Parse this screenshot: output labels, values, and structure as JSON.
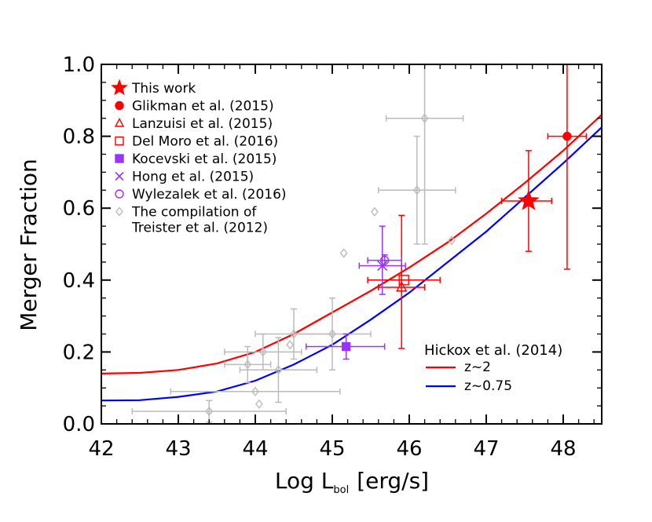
{
  "chart_data": {
    "type": "scatter",
    "xlabel": "Log L",
    "xlabel_sub": "bol",
    "xlabel_unit": "[erg/s]",
    "ylabel": "Merger Fraction",
    "xlim": [
      42,
      48.5
    ],
    "ylim": [
      0.0,
      1.0
    ],
    "x_ticks": [
      42,
      43,
      44,
      45,
      46,
      47,
      48
    ],
    "y_ticks": [
      "0.0",
      "0.2",
      "0.4",
      "0.6",
      "0.8",
      "1.0"
    ],
    "y_tick_values": [
      0.0,
      0.2,
      0.4,
      0.6,
      0.8,
      1.0
    ],
    "grid": false,
    "legend_position": "top-left",
    "datasets": [
      {
        "name": "This work",
        "marker": "star",
        "color": "#ff0000",
        "filled": true,
        "size": 13,
        "points": [
          {
            "x": 47.55,
            "y": 0.62,
            "xerr": [
              0.35,
              0.3
            ],
            "yerr": [
              0.14,
              0.14
            ]
          }
        ]
      },
      {
        "name": "Glikman et al. (2015)",
        "marker": "circle",
        "color": "#ff0000",
        "filled": true,
        "size": 5,
        "points": [
          {
            "x": 48.05,
            "y": 0.8,
            "xerr": [
              0.25,
              0.25
            ],
            "yerr": [
              0.37,
              0.2
            ]
          }
        ]
      },
      {
        "name": "Lanzuisi et al. (2015)",
        "marker": "triangle",
        "color": "#ff0000",
        "filled": false,
        "size": 6,
        "points": [
          {
            "x": 45.9,
            "y": 0.38,
            "xerr": [
              0.3,
              0.3
            ],
            "yerr": [
              0.17,
              0.2
            ]
          }
        ]
      },
      {
        "name": "Del Moro et al. (2016)",
        "marker": "square",
        "color": "#ff0000",
        "filled": false,
        "size": 6,
        "points": [
          {
            "x": 45.93,
            "y": 0.4,
            "xerr": [
              0.47,
              0.47
            ],
            "yerr": [
              0.0,
              0.0
            ]
          }
        ]
      },
      {
        "name": "Kocevski et al. (2015)",
        "marker": "square",
        "color": "#9933ff",
        "filled": true,
        "size": 5,
        "points": [
          {
            "x": 45.18,
            "y": 0.215,
            "xerr": [
              0.52,
              0.5
            ],
            "yerr": [
              0.035,
              0.035
            ]
          }
        ]
      },
      {
        "name": "Hong et al. (2015)",
        "marker": "x",
        "color": "#9933ff",
        "filled": false,
        "size": 6,
        "points": [
          {
            "x": 45.65,
            "y": 0.44,
            "xerr": [
              0.3,
              0.3
            ],
            "yerr": [
              0.08,
              0.11
            ]
          }
        ]
      },
      {
        "name": "Wylezalek et al. (2016)",
        "marker": "circle",
        "color": "#9933ff",
        "filled": false,
        "size": 5,
        "points": [
          {
            "x": 45.68,
            "y": 0.455,
            "xerr": [
              0.22,
              0.22
            ],
            "yerr": [
              0.015,
              0.015
            ]
          }
        ]
      },
      {
        "name": "The compilation of",
        "name_line2": "Treister et al. (2012)",
        "marker": "diamond",
        "color": "#bbbbbb",
        "filled": false,
        "size": 5,
        "points": [
          {
            "x": 43.4,
            "y": 0.035,
            "xerr": [
              1.0,
              1.0
            ],
            "yerr": [
              0.03,
              0.03
            ]
          },
          {
            "x": 44.0,
            "y": 0.09,
            "xerr": [
              1.1,
              1.1
            ],
            "yerr": [
              0.0,
              0.0
            ]
          },
          {
            "x": 44.05,
            "y": 0.055,
            "xerr": [
              0.0,
              0.0
            ],
            "yerr": [
              0.0,
              0.0
            ]
          },
          {
            "x": 43.9,
            "y": 0.165,
            "xerr": [
              0.3,
              0.3
            ],
            "yerr": [
              0.05,
              0.05
            ]
          },
          {
            "x": 44.1,
            "y": 0.2,
            "xerr": [
              0.5,
              0.5
            ],
            "yerr": [
              0.05,
              0.05
            ]
          },
          {
            "x": 44.3,
            "y": 0.15,
            "xerr": [
              0.5,
              0.5
            ],
            "yerr": [
              0.09,
              0.09
            ]
          },
          {
            "x": 44.45,
            "y": 0.22,
            "xerr": [
              0.0,
              0.0
            ],
            "yerr": [
              0.0,
              0.0
            ]
          },
          {
            "x": 44.5,
            "y": 0.25,
            "xerr": [
              0.5,
              0.5
            ],
            "yerr": [
              0.07,
              0.07
            ]
          },
          {
            "x": 45.0,
            "y": 0.25,
            "xerr": [
              0.5,
              0.5
            ],
            "yerr": [
              0.1,
              0.1
            ]
          },
          {
            "x": 45.15,
            "y": 0.475,
            "xerr": [
              0.0,
              0.0
            ],
            "yerr": [
              0.0,
              0.0
            ]
          },
          {
            "x": 45.55,
            "y": 0.59,
            "xerr": [
              0.0,
              0.0
            ],
            "yerr": [
              0.0,
              0.0
            ]
          },
          {
            "x": 46.1,
            "y": 0.65,
            "xerr": [
              0.5,
              0.5
            ],
            "yerr": [
              0.15,
              0.15
            ]
          },
          {
            "x": 46.2,
            "y": 0.85,
            "xerr": [
              0.5,
              0.5
            ],
            "yerr": [
              0.35,
              0.15
            ]
          },
          {
            "x": 46.55,
            "y": 0.51,
            "xerr": [
              0.0,
              0.0
            ],
            "yerr": [
              0.0,
              0.0
            ]
          }
        ]
      }
    ],
    "curves_legend_title": "Hickox et al. (2014)",
    "curves": [
      {
        "name": "z~2",
        "color": "#ff0000",
        "x": [
          42.0,
          42.5,
          43.0,
          43.5,
          44.0,
          44.5,
          45.0,
          45.5,
          46.0,
          46.5,
          47.0,
          47.5,
          48.0,
          48.5
        ],
        "y": [
          0.14,
          0.142,
          0.15,
          0.168,
          0.2,
          0.25,
          0.31,
          0.37,
          0.435,
          0.505,
          0.585,
          0.67,
          0.76,
          0.86
        ]
      },
      {
        "name": "z~0.75",
        "color": "#0000ff",
        "x": [
          42.0,
          42.5,
          43.0,
          43.5,
          44.0,
          44.5,
          45.0,
          45.5,
          46.0,
          46.5,
          47.0,
          47.5,
          48.0,
          48.5
        ],
        "y": [
          0.065,
          0.066,
          0.075,
          0.09,
          0.12,
          0.165,
          0.22,
          0.29,
          0.365,
          0.45,
          0.535,
          0.63,
          0.725,
          0.825
        ]
      }
    ]
  }
}
